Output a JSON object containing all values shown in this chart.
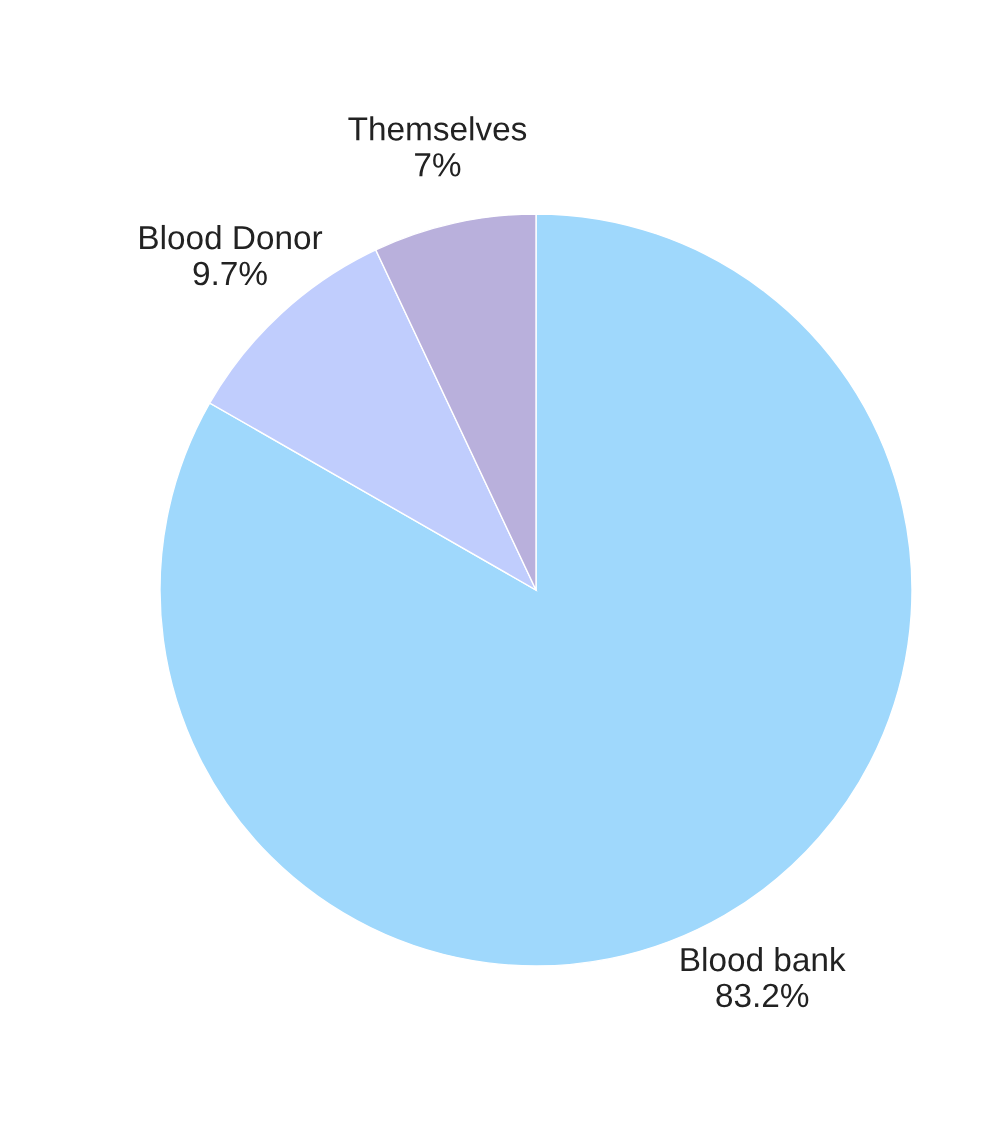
{
  "chart_data": {
    "type": "pie",
    "categories": [
      "Blood bank",
      "Blood Donor",
      "Themselves"
    ],
    "values": [
      83.2,
      9.7,
      7
    ],
    "value_labels": [
      "83.2%",
      "9.7%",
      "7%"
    ],
    "colors": [
      "#9fd8fc",
      "#c0cdfd",
      "#b9b0dc"
    ]
  }
}
